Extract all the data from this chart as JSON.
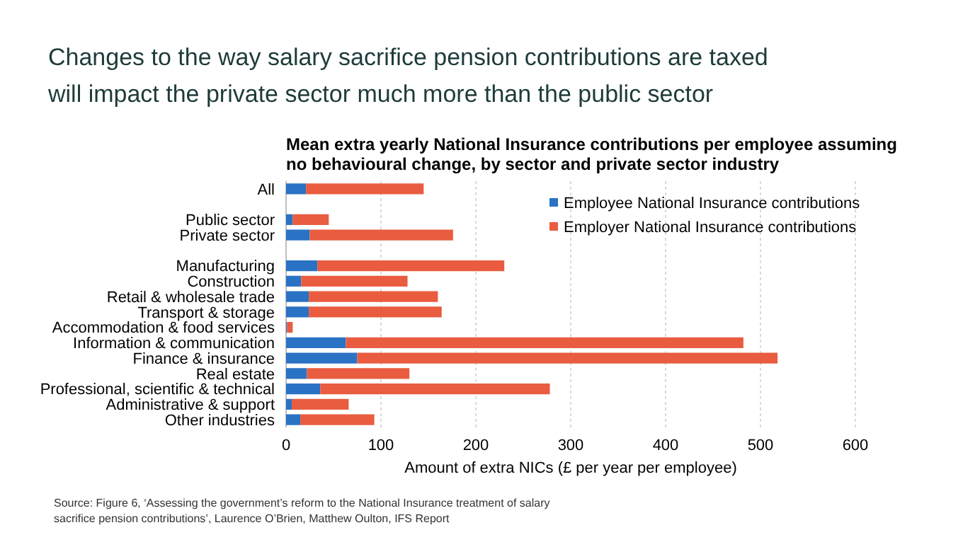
{
  "chart_data": {
    "type": "bar",
    "orientation": "horizontal",
    "stacked": true,
    "title": "Changes to the way salary sacrifice pension contributions are taxed will impact the private sector much more than the public sector",
    "subtitle": "Mean extra yearly National Insurance contributions per employee assuming no behavioural change, by sector and private sector industry",
    "xlabel": "Amount of extra NICs (£ per year per employee)",
    "categories": [
      "All",
      null,
      "Public sector",
      "Private sector",
      null,
      "Manufacturing",
      "Construction",
      "Retail & wholesale trade",
      "Transport & storage",
      "Accommodation & food services",
      "Information & communication",
      "Finance & insurance",
      "Real estate",
      "Professional, scientific & technical",
      "Administrative & support",
      "Other industries"
    ],
    "series": [
      {
        "name": "Employee National Insurance contributions",
        "color": "#2a72c4",
        "values": [
          21,
          null,
          7,
          25,
          null,
          33,
          16,
          24,
          24,
          1,
          63,
          75,
          22,
          36,
          6,
          15
        ]
      },
      {
        "name": "Employer National Insurance contributions",
        "color": "#e95c3f",
        "values": [
          124,
          null,
          38,
          151,
          null,
          197,
          112,
          136,
          140,
          6,
          419,
          443,
          108,
          242,
          60,
          78
        ]
      }
    ],
    "xlim": [
      0,
      600
    ],
    "xticks": [
      0,
      100,
      200,
      300,
      400,
      500,
      600
    ],
    "grid": "x",
    "legend": "top right",
    "annotations": [
      "Source: Figure 6, ‘Assessing the government’s reform to the National Insurance treatment of salary sacrifice pension contributions’, Laurence O’Brien, Matthew Oulton, IFS Report"
    ]
  }
}
